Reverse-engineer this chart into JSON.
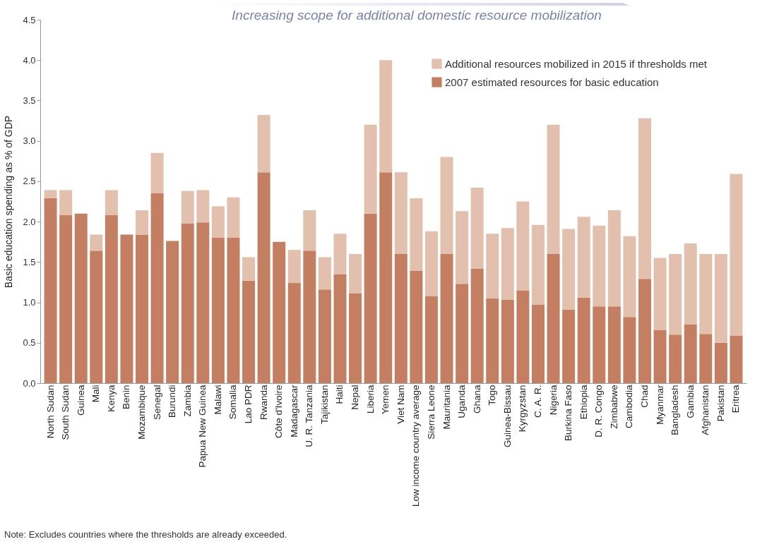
{
  "chart_data": {
    "type": "bar",
    "stacked": true,
    "ylabel": "Basic education spending as % of GDP",
    "annotations": [
      "Increasing scope for additional domestic resource mobilization",
      "Note: Excludes countries where the thresholds are already exceeded."
    ],
    "categories": [
      "North Sudan",
      "South Sudan",
      "Guinea",
      "Mali",
      "Kenya",
      "Benin",
      "Mozambique",
      "Senegal",
      "Burundi",
      "Zambia",
      "Papua New Guinea",
      "Malawi",
      "Somalia",
      "Lao PDR",
      "Rwanda",
      "Côte d'Ivoire",
      "Madagascar",
      "U. R. Tanzania",
      "Tajikistan",
      "Haiti",
      "Nepal",
      "Liberia",
      "Yemen",
      "Viet Nam",
      "Low income country average",
      "Sierra Leone",
      "Mauritania",
      "Uganda",
      "Ghana",
      "Togo",
      "Guinea-Bissau",
      "Kyrgyzstan",
      "C. A. R.",
      "Nigeria",
      "Burkina Faso",
      "Ethiopia",
      "D. R. Congo",
      "Zimbabwe",
      "Cambodia",
      "Chad",
      "Myanmar",
      "Bangladesh",
      "Gambia",
      "Afghanistan",
      "Pakistan",
      "Eritrea"
    ],
    "series": [
      {
        "name": "2007 estimated resources for basic education",
        "color": "#c47f62",
        "values": [
          2.29,
          2.08,
          2.1,
          1.64,
          2.08,
          1.84,
          1.84,
          2.35,
          1.76,
          1.98,
          1.99,
          1.8,
          1.8,
          1.27,
          2.61,
          1.75,
          1.24,
          1.64,
          1.16,
          1.35,
          1.11,
          2.1,
          2.61,
          1.6,
          1.39,
          1.08,
          1.6,
          1.23,
          1.42,
          1.05,
          1.03,
          1.15,
          0.97,
          1.6,
          0.91,
          1.06,
          0.95,
          0.95,
          0.82,
          1.29,
          0.66,
          0.6,
          0.73,
          0.61,
          0.5,
          0.59
        ]
      },
      {
        "name": "Additional resources mobilized in 2015 if thresholds met",
        "color": "#e2c0ad",
        "values": [
          0.1,
          0.31,
          0,
          0.2,
          0.31,
          0,
          0.3,
          0.5,
          0,
          0.4,
          0.4,
          0.39,
          0.5,
          0.29,
          0.71,
          0,
          0.41,
          0.5,
          0.4,
          0.5,
          0.49,
          1.1,
          1.39,
          1.01,
          0.9,
          0.8,
          1.2,
          0.9,
          1.0,
          0.8,
          0.89,
          1.1,
          0.99,
          1.6,
          1.0,
          1.0,
          1.0,
          1.19,
          1.0,
          1.99,
          0.89,
          1.0,
          1.0,
          0.99,
          1.1,
          2.0
        ]
      }
    ],
    "ylim": [
      0,
      4.5
    ],
    "yticks": [
      {
        "value": 0,
        "label": "0.0"
      },
      0.5,
      {
        "value": 1,
        "label": "1.0"
      },
      1.5,
      {
        "value": 2,
        "label": "2.0"
      },
      2.5,
      {
        "value": 3,
        "label": "3.0"
      },
      3.5,
      {
        "value": 4,
        "label": "4.0"
      },
      4.5
    ],
    "legend": "top right"
  }
}
